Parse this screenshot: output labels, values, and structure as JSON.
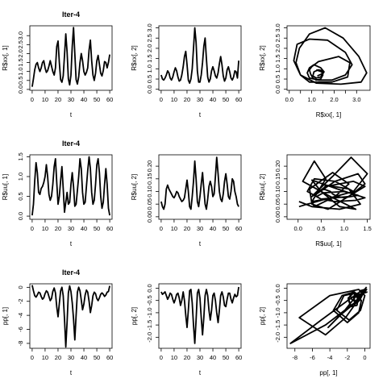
{
  "chart_data": [
    {
      "id": "p11",
      "type": "line",
      "title": "Iter-4",
      "xlabel": "t",
      "ylabel": "R$xx[, 1]",
      "xlim": [
        -1.8,
        61.8
      ],
      "ylim": [
        -0.05,
        3.55
      ],
      "xticks": [
        0,
        10,
        20,
        30,
        40,
        50,
        60
      ],
      "yticks": [
        0,
        0.5,
        1,
        1.5,
        2,
        2.5,
        3
      ],
      "ytick_labels": [
        "0.0",
        "0.5",
        "1.0",
        "1.5",
        "2.0",
        "2.5",
        "3.0"
      ],
      "x": [
        0,
        1,
        2,
        3,
        4,
        5,
        6,
        7,
        8,
        9,
        10,
        11,
        12,
        13,
        14,
        15,
        16,
        17,
        18,
        19,
        20,
        21,
        22,
        23,
        24,
        25,
        26,
        27,
        28,
        29,
        30,
        31,
        32,
        33,
        34,
        35,
        36,
        37,
        38,
        39,
        40,
        41,
        42,
        43,
        44,
        45,
        46,
        47,
        48,
        49,
        50,
        51,
        52,
        53,
        54,
        55,
        56,
        57,
        58,
        59,
        60
      ],
      "y": [
        0.15,
        0.6,
        1.1,
        1.4,
        1.5,
        1.2,
        1.0,
        1.2,
        1.5,
        1.6,
        1.2,
        0.95,
        1.05,
        1.3,
        1.6,
        1.3,
        1.0,
        0.8,
        1.2,
        2.4,
        2.7,
        1.5,
        0.55,
        0.4,
        0.75,
        1.9,
        3.1,
        2.1,
        0.6,
        0.25,
        0.8,
        2.4,
        3.45,
        2.0,
        0.55,
        0.3,
        0.7,
        1.5,
        2.0,
        1.6,
        1.0,
        0.8,
        0.95,
        1.2,
        2.2,
        2.75,
        1.6,
        0.8,
        0.5,
        0.9,
        1.6,
        1.9,
        1.4,
        0.9,
        0.75,
        1.05,
        1.55,
        1.5,
        1.2,
        1.5,
        1.95
      ]
    },
    {
      "id": "p12",
      "type": "line",
      "title": "",
      "xlabel": "t",
      "ylabel": "R$xx[, 2]",
      "xlim": [
        -1.8,
        61.8
      ],
      "ylim": [
        -0.05,
        3.1
      ],
      "xticks": [
        0,
        10,
        20,
        30,
        40,
        50,
        60
      ],
      "yticks": [
        0,
        0.5,
        1,
        1.5,
        2,
        2.5,
        3
      ],
      "ytick_labels": [
        "0.0",
        "0.5",
        "1.0",
        "1.5",
        "2.0",
        "2.5",
        "3.0"
      ],
      "x": [
        0,
        1,
        2,
        3,
        4,
        5,
        6,
        7,
        8,
        9,
        10,
        11,
        12,
        13,
        14,
        15,
        16,
        17,
        18,
        19,
        20,
        21,
        22,
        23,
        24,
        25,
        26,
        27,
        28,
        29,
        30,
        31,
        32,
        33,
        34,
        35,
        36,
        37,
        38,
        39,
        40,
        41,
        42,
        43,
        44,
        45,
        46,
        47,
        48,
        49,
        50,
        51,
        52,
        53,
        54,
        55,
        56,
        57,
        58,
        59,
        60
      ],
      "y": [
        0.7,
        0.5,
        0.45,
        0.55,
        0.7,
        0.9,
        0.8,
        0.55,
        0.45,
        0.6,
        0.85,
        1.05,
        0.9,
        0.6,
        0.4,
        0.45,
        0.7,
        1.1,
        1.6,
        1.85,
        1.2,
        0.45,
        0.3,
        0.5,
        1.0,
        2.0,
        3.0,
        2.3,
        0.9,
        0.35,
        0.35,
        0.7,
        1.3,
        2.1,
        2.5,
        1.5,
        0.6,
        0.35,
        0.5,
        0.9,
        1.1,
        0.9,
        0.65,
        0.55,
        0.8,
        1.25,
        1.6,
        1.2,
        0.65,
        0.4,
        0.55,
        0.95,
        1.1,
        0.85,
        0.55,
        0.45,
        0.6,
        0.9,
        0.85,
        0.55,
        1.4
      ]
    },
    {
      "id": "p13",
      "type": "line",
      "title": "",
      "xlabel": "R$xx[, 1]",
      "ylabel": "R$xx[, 2]",
      "xlim": [
        -0.1,
        3.6
      ],
      "ylim": [
        -0.05,
        3.1
      ],
      "xticks": [
        0,
        0.5,
        1,
        1.5,
        2,
        2.5,
        3
      ],
      "yticks": [
        0,
        0.5,
        1,
        1.5,
        2,
        2.5,
        3
      ],
      "xtick_labels": [
        "0.0",
        "",
        "1.0",
        "",
        "2.0",
        "",
        "3.0"
      ],
      "ytick_labels": [
        "0.0",
        "0.5",
        "1.0",
        "1.5",
        "2.0",
        "2.5",
        "3.0"
      ],
      "x": [
        1.2,
        1.45,
        1.5,
        1.4,
        1.2,
        1.05,
        0.95,
        0.9,
        1.0,
        1.3,
        2.2,
        2.7,
        2.6,
        1.9,
        0.9,
        0.5,
        0.3,
        0.45,
        0.9,
        1.6,
        2.4,
        3.1,
        3.45,
        3.2,
        2.3,
        1.2,
        0.5,
        0.2,
        0.35,
        0.9,
        1.7,
        2.5,
        2.8,
        2.5,
        1.9,
        1.3,
        0.9,
        0.8,
        0.9,
        1.1,
        1.4,
        1.55,
        1.4,
        1.2,
        1.05,
        1.1,
        1.3,
        1.5,
        1.45,
        1.25
      ],
      "y": [
        0.95,
        0.85,
        0.7,
        0.5,
        0.45,
        0.55,
        0.75,
        0.95,
        1.1,
        1.35,
        1.6,
        1.3,
        0.6,
        0.35,
        0.35,
        0.7,
        1.3,
        2.0,
        2.7,
        3.0,
        2.5,
        1.6,
        0.8,
        0.35,
        0.25,
        0.3,
        0.7,
        1.4,
        2.2,
        2.45,
        2.4,
        1.8,
        1.2,
        0.7,
        0.45,
        0.45,
        0.55,
        0.8,
        1.05,
        1.2,
        1.05,
        0.85,
        0.6,
        0.55,
        0.65,
        0.85,
        0.95,
        0.9,
        0.75,
        0.65
      ]
    },
    {
      "id": "p21",
      "type": "line",
      "title": "Iter-4",
      "xlabel": "t",
      "ylabel": "R$uu[, 1]",
      "xlim": [
        -1.8,
        61.8
      ],
      "ylim": [
        -0.08,
        1.55
      ],
      "xticks": [
        0,
        10,
        20,
        30,
        40,
        50,
        60
      ],
      "yticks": [
        0,
        0.5,
        1,
        1.5
      ],
      "ytick_labels": [
        "0.0",
        "0.5",
        "1.0",
        "1.5"
      ],
      "x": [
        0,
        1,
        2,
        3,
        4,
        5,
        6,
        7,
        8,
        9,
        10,
        11,
        12,
        13,
        14,
        15,
        16,
        17,
        18,
        19,
        20,
        21,
        22,
        23,
        24,
        25,
        26,
        27,
        28,
        29,
        30,
        31,
        32,
        33,
        34,
        35,
        36,
        37,
        38,
        39,
        40,
        41,
        42,
        43,
        44,
        45,
        46,
        47,
        48,
        49,
        50,
        51,
        52,
        53,
        54,
        55,
        56,
        57,
        58,
        59,
        60
      ],
      "y": [
        0.02,
        0.3,
        0.9,
        1.35,
        1.1,
        0.6,
        0.55,
        0.7,
        0.75,
        0.85,
        1.0,
        1.3,
        1.0,
        0.55,
        0.4,
        0.5,
        0.8,
        1.25,
        1.45,
        0.85,
        0.3,
        0.5,
        0.9,
        1.25,
        0.7,
        0.1,
        0.35,
        0.6,
        0.3,
        0.35,
        0.8,
        1.1,
        0.75,
        0.25,
        0.3,
        0.65,
        1.0,
        1.45,
        1.2,
        0.6,
        0.3,
        0.35,
        0.75,
        1.15,
        1.5,
        1.2,
        0.6,
        0.3,
        0.4,
        0.8,
        1.3,
        1.45,
        1.1,
        0.5,
        0.2,
        0.35,
        0.8,
        1.2,
        0.8,
        0.2,
        0.02
      ]
    },
    {
      "id": "p22",
      "type": "line",
      "title": "",
      "xlabel": "t",
      "ylabel": "R$uu[, 2]",
      "xlim": [
        -1.8,
        61.8
      ],
      "ylim": [
        -0.01,
        0.245
      ],
      "xticks": [
        0,
        10,
        20,
        30,
        40,
        50,
        60
      ],
      "yticks": [
        0,
        0.05,
        0.1,
        0.15,
        0.2
      ],
      "ytick_labels": [
        "0.00",
        "0.05",
        "0.10",
        "0.15",
        "0.20"
      ],
      "x": [
        0,
        1,
        2,
        3,
        4,
        5,
        6,
        7,
        8,
        9,
        10,
        11,
        12,
        13,
        14,
        15,
        16,
        17,
        18,
        19,
        20,
        21,
        22,
        23,
        24,
        25,
        26,
        27,
        28,
        29,
        30,
        31,
        32,
        33,
        34,
        35,
        36,
        37,
        38,
        39,
        40,
        41,
        42,
        43,
        44,
        45,
        46,
        47,
        48,
        49,
        50,
        51,
        52,
        53,
        54,
        55,
        56,
        57,
        58,
        59,
        60
      ],
      "y": [
        0.06,
        0.04,
        0.03,
        0.05,
        0.11,
        0.125,
        0.11,
        0.1,
        0.09,
        0.08,
        0.075,
        0.085,
        0.1,
        0.095,
        0.08,
        0.07,
        0.06,
        0.065,
        0.075,
        0.11,
        0.145,
        0.1,
        0.04,
        0.03,
        0.08,
        0.14,
        0.22,
        0.15,
        0.06,
        0.04,
        0.08,
        0.13,
        0.175,
        0.11,
        0.05,
        0.03,
        0.07,
        0.12,
        0.14,
        0.12,
        0.08,
        0.09,
        0.16,
        0.235,
        0.17,
        0.1,
        0.07,
        0.06,
        0.09,
        0.14,
        0.17,
        0.13,
        0.08,
        0.07,
        0.1,
        0.15,
        0.14,
        0.1,
        0.08,
        0.05,
        0.04
      ]
    },
    {
      "id": "p23",
      "type": "line",
      "title": "",
      "xlabel": "R$uu[, 1]",
      "ylabel": "R$uu[, 2]",
      "xlim": [
        -0.24,
        1.56
      ],
      "ylim": [
        -0.01,
        0.245
      ],
      "xticks": [
        0,
        0.5,
        1,
        1.5
      ],
      "yticks": [
        0,
        0.05,
        0.1,
        0.15,
        0.2
      ],
      "xtick_labels": [
        "0.0",
        "0.5",
        "1.0",
        "1.5"
      ],
      "ytick_labels": [
        "0.00",
        "0.05",
        "0.10",
        "0.15",
        "0.20"
      ],
      "x": [
        0.02,
        0.3,
        0.9,
        1.35,
        1.1,
        0.6,
        0.55,
        0.7,
        0.75,
        0.85,
        1.0,
        1.3,
        1.0,
        0.55,
        0.4,
        0.5,
        0.8,
        1.25,
        1.45,
        0.85,
        0.3,
        0.5,
        0.9,
        1.25,
        0.7,
        0.1,
        0.35,
        0.6,
        0.3,
        0.35,
        0.8,
        1.1,
        0.75,
        0.25,
        0.3,
        0.65,
        1.0,
        1.45,
        1.2,
        0.6,
        0.3,
        0.35,
        0.75,
        1.15,
        1.5,
        1.2,
        0.6,
        0.3,
        0.4,
        0.8,
        1.3,
        1.45,
        1.1,
        0.5,
        0.2,
        0.35,
        0.8,
        1.2,
        0.8,
        0.2,
        0.02
      ],
      "y": [
        0.06,
        0.04,
        0.03,
        0.05,
        0.11,
        0.125,
        0.11,
        0.1,
        0.09,
        0.08,
        0.075,
        0.085,
        0.1,
        0.095,
        0.08,
        0.07,
        0.06,
        0.065,
        0.075,
        0.11,
        0.145,
        0.1,
        0.04,
        0.03,
        0.08,
        0.14,
        0.22,
        0.15,
        0.06,
        0.04,
        0.08,
        0.13,
        0.175,
        0.11,
        0.05,
        0.03,
        0.07,
        0.12,
        0.14,
        0.12,
        0.08,
        0.09,
        0.16,
        0.235,
        0.17,
        0.1,
        0.07,
        0.06,
        0.09,
        0.14,
        0.17,
        0.13,
        0.08,
        0.07,
        0.1,
        0.15,
        0.14,
        0.1,
        0.08,
        0.05,
        0.04
      ]
    },
    {
      "id": "p31",
      "type": "line",
      "title": "Iter-4",
      "xlabel": "t",
      "ylabel": "pp[, 1]",
      "xlim": [
        -1.8,
        61.8
      ],
      "ylim": [
        -8.7,
        0.5
      ],
      "xticks": [
        0,
        10,
        20,
        30,
        40,
        50,
        60
      ],
      "yticks": [
        -8,
        -6,
        -4,
        -2,
        0
      ],
      "ytick_labels": [
        "-8",
        "-6",
        "-4",
        "-2",
        "0"
      ],
      "x": [
        0,
        1,
        2,
        3,
        4,
        5,
        6,
        7,
        8,
        9,
        10,
        11,
        12,
        13,
        14,
        15,
        16,
        17,
        18,
        19,
        20,
        21,
        22,
        23,
        24,
        25,
        26,
        27,
        28,
        29,
        30,
        31,
        32,
        33,
        34,
        35,
        36,
        37,
        38,
        39,
        40,
        41,
        42,
        43,
        44,
        45,
        46,
        47,
        48,
        49,
        50,
        51,
        52,
        53,
        54,
        55,
        56,
        57,
        58,
        59,
        60
      ],
      "y": [
        0.3,
        -0.5,
        -1.2,
        -1.4,
        -1.1,
        -0.7,
        -0.8,
        -1.3,
        -1.7,
        -1.5,
        -0.9,
        -0.5,
        -0.7,
        -1.3,
        -1.9,
        -1.6,
        -0.6,
        -0.1,
        -0.8,
        -2.8,
        -4.2,
        -2.3,
        -0.5,
        0.0,
        -1.2,
        -4.5,
        -8.5,
        -5.0,
        -0.8,
        0.2,
        -0.6,
        -2.2,
        -4.5,
        -7.5,
        -4.0,
        -0.7,
        0.0,
        -0.5,
        -1.8,
        -3.2,
        -2.4,
        -1.1,
        -0.4,
        -0.7,
        -2.0,
        -3.6,
        -2.6,
        -1.2,
        -0.7,
        -0.9,
        -1.6,
        -1.9,
        -1.5,
        -1.0,
        -0.8,
        -1.0,
        -1.3,
        -1.1,
        -0.7,
        -0.6,
        0.2
      ]
    },
    {
      "id": "p32",
      "type": "line",
      "title": "",
      "xlabel": "t",
      "ylabel": "pp[, 2]",
      "xlim": [
        -1.8,
        61.8
      ],
      "ylim": [
        -2.45,
        0.18
      ],
      "xticks": [
        0,
        10,
        20,
        30,
        40,
        50,
        60
      ],
      "yticks": [
        -2,
        -1.5,
        -1,
        -0.5,
        0
      ],
      "ytick_labels": [
        "-2.0",
        "-1.5",
        "-1.0",
        "-0.5",
        "0.0"
      ],
      "x": [
        0,
        1,
        2,
        3,
        4,
        5,
        6,
        7,
        8,
        9,
        10,
        11,
        12,
        13,
        14,
        15,
        16,
        17,
        18,
        19,
        20,
        21,
        22,
        23,
        24,
        25,
        26,
        27,
        28,
        29,
        30,
        31,
        32,
        33,
        34,
        35,
        36,
        37,
        38,
        39,
        40,
        41,
        42,
        43,
        44,
        45,
        46,
        47,
        48,
        49,
        50,
        51,
        52,
        53,
        54,
        55,
        56,
        57,
        58,
        59,
        60
      ],
      "y": [
        -0.15,
        -0.25,
        -0.2,
        -0.15,
        -0.3,
        -0.45,
        -0.35,
        -0.2,
        -0.25,
        -0.45,
        -0.6,
        -0.45,
        -0.25,
        -0.2,
        -0.4,
        -0.7,
        -0.5,
        -0.15,
        -0.5,
        -1.1,
        -1.6,
        -0.9,
        -0.1,
        -0.05,
        -0.6,
        -1.5,
        -2.25,
        -1.3,
        -0.2,
        -0.05,
        -0.4,
        -1.2,
        -1.9,
        -1.2,
        -0.3,
        -0.05,
        -0.3,
        -0.9,
        -1.3,
        -0.9,
        -0.3,
        -0.2,
        -0.5,
        -1.0,
        -1.4,
        -0.9,
        -0.3,
        -0.15,
        -0.35,
        -0.7,
        -0.75,
        -0.45,
        -0.2,
        -0.2,
        -0.45,
        -0.6,
        -0.4,
        -0.25,
        -0.35,
        -0.3,
        0.05
      ]
    },
    {
      "id": "p33",
      "type": "line",
      "title": "",
      "xlabel": "pp[, 1]",
      "ylabel": "pp[, 2]",
      "xlim": [
        -8.9,
        0.6
      ],
      "ylim": [
        -2.45,
        0.18
      ],
      "xticks": [
        -8,
        -6,
        -4,
        -2,
        0
      ],
      "yticks": [
        -2,
        -1.5,
        -1,
        -0.5,
        0
      ],
      "xtick_labels": [
        "-8",
        "-6",
        "-4",
        "-2",
        "0"
      ],
      "ytick_labels": [
        "-2.0",
        "-1.5",
        "-1.0",
        "-0.5",
        "0.0"
      ],
      "x": [
        0.3,
        -0.5,
        -1.2,
        -1.4,
        -1.1,
        -0.7,
        -0.8,
        -1.3,
        -1.7,
        -1.5,
        -0.9,
        -0.5,
        -0.7,
        -1.3,
        -1.9,
        -1.6,
        -0.6,
        -0.1,
        -0.8,
        -2.8,
        -4.2,
        -2.3,
        -0.5,
        0.0,
        -1.2,
        -4.5,
        -8.5,
        -5.0,
        -0.8,
        0.2,
        -0.6,
        -2.2,
        -4.5,
        -7.5,
        -4.0,
        -0.7,
        0.0,
        -0.5,
        -1.8,
        -3.2,
        -2.4,
        -1.1,
        -0.4,
        -0.7,
        -2.0,
        -3.6,
        -2.6,
        -1.2,
        -0.7,
        -0.9,
        -1.6,
        -1.9,
        -1.5,
        -1.0,
        -0.8,
        -1.0,
        -1.3,
        -1.1,
        -0.7,
        -0.6,
        0.2
      ],
      "y": [
        -0.15,
        -0.25,
        -0.2,
        -0.15,
        -0.3,
        -0.45,
        -0.35,
        -0.2,
        -0.25,
        -0.45,
        -0.6,
        -0.45,
        -0.25,
        -0.2,
        -0.4,
        -0.7,
        -0.5,
        -0.15,
        -0.5,
        -1.1,
        -1.6,
        -0.9,
        -0.1,
        -0.05,
        -0.6,
        -1.5,
        -2.25,
        -1.3,
        -0.2,
        -0.05,
        -0.4,
        -1.2,
        -1.9,
        -1.2,
        -0.3,
        -0.05,
        -0.3,
        -0.9,
        -1.3,
        -0.9,
        -0.3,
        -0.2,
        -0.5,
        -1.0,
        -1.4,
        -0.9,
        -0.3,
        -0.15,
        -0.35,
        -0.7,
        -0.75,
        -0.45,
        -0.2,
        -0.2,
        -0.45,
        -0.6,
        -0.4,
        -0.25,
        -0.35,
        -0.3,
        0.05
      ]
    }
  ]
}
